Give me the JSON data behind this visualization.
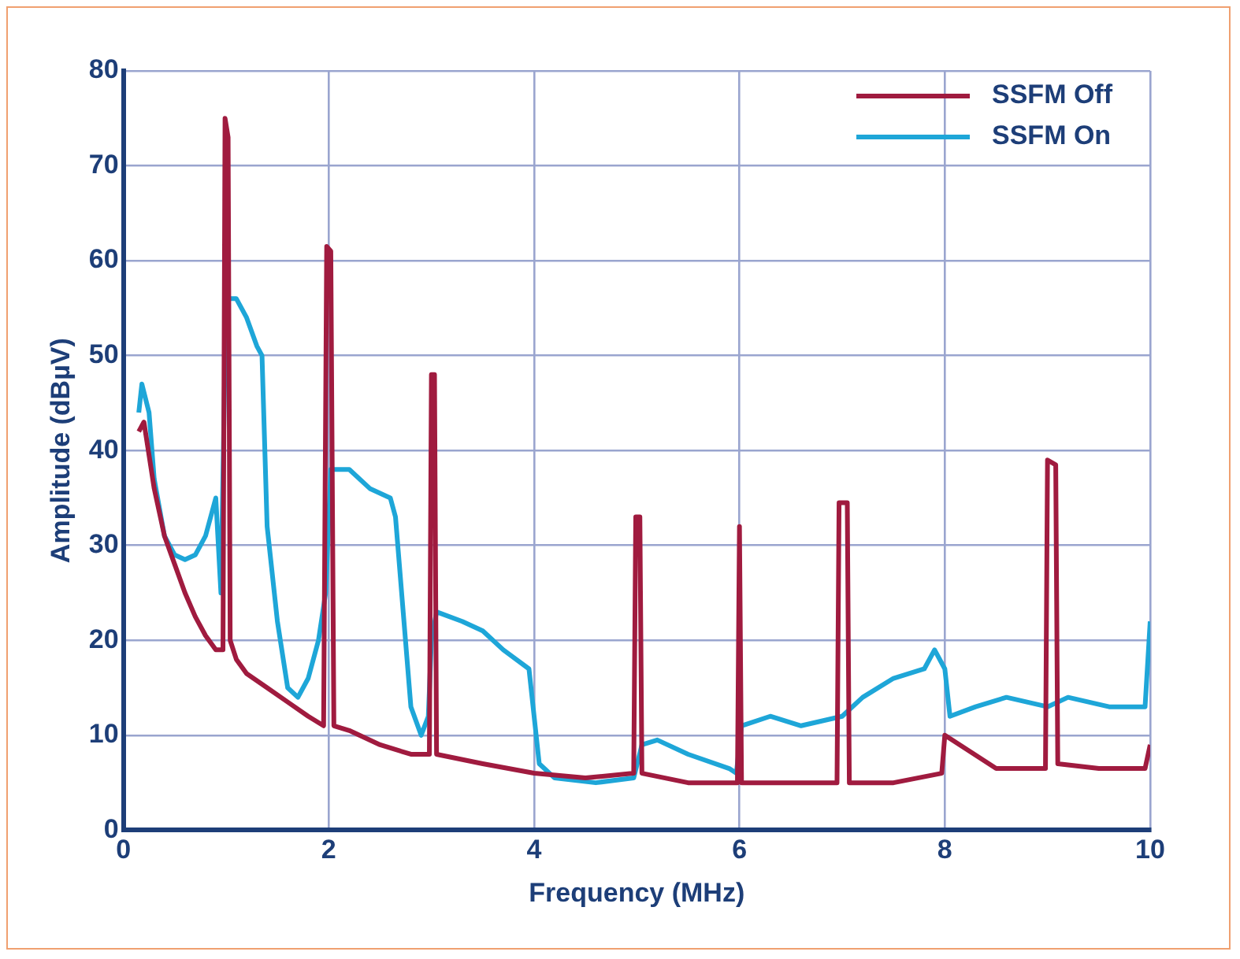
{
  "chart_data": {
    "type": "line",
    "xlabel": "Frequency (MHz)",
    "ylabel": "Amplitude (dBµV)",
    "xlim": [
      0,
      10
    ],
    "xticks": [
      0,
      2,
      4,
      6,
      8,
      10
    ],
    "ylim": [
      0,
      80
    ],
    "yticks": [
      0,
      10,
      20,
      30,
      40,
      50,
      60,
      70,
      80
    ],
    "grid": true,
    "legend": "top right",
    "marker": "none",
    "line_style": "solid",
    "series": [
      {
        "name": "SSFM Off",
        "color": "#a01b3f",
        "x": [
          0.15,
          0.2,
          0.3,
          0.4,
          0.5,
          0.6,
          0.7,
          0.8,
          0.9,
          0.97,
          0.99,
          1.02,
          1.04,
          1.1,
          1.2,
          1.4,
          1.6,
          1.8,
          1.95,
          1.98,
          2.02,
          2.05,
          2.2,
          2.5,
          2.8,
          2.98,
          3.0,
          3.03,
          3.05,
          3.5,
          4.0,
          4.5,
          4.97,
          4.99,
          5.03,
          5.05,
          5.5,
          5.98,
          6.0,
          6.02,
          6.5,
          6.95,
          6.97,
          7.05,
          7.07,
          7.5,
          7.97,
          8.0,
          8.5,
          8.98,
          9.0,
          9.08,
          9.1,
          9.5,
          9.95,
          10
        ],
        "values": [
          42,
          43,
          36,
          31,
          28,
          25,
          22.5,
          20.5,
          19,
          19,
          75,
          73,
          20,
          18,
          16.5,
          15,
          13.5,
          12,
          11,
          61.5,
          61,
          11,
          10.5,
          9,
          8,
          8,
          48,
          48,
          8,
          7,
          6,
          5.5,
          6,
          33,
          33,
          6,
          5,
          5,
          32,
          5,
          5,
          5,
          34.5,
          34.5,
          5,
          5,
          6,
          10,
          6.5,
          6.5,
          39,
          38.5,
          7,
          6.5,
          6.5,
          9
        ]
      },
      {
        "name": "SSFM On",
        "color": "#1ea6d8",
        "x": [
          0.15,
          0.18,
          0.25,
          0.3,
          0.4,
          0.5,
          0.6,
          0.7,
          0.8,
          0.9,
          0.95,
          0.99,
          1.02,
          1.1,
          1.2,
          1.3,
          1.35,
          1.4,
          1.5,
          1.6,
          1.7,
          1.8,
          1.9,
          1.97,
          2.02,
          2.2,
          2.4,
          2.6,
          2.65,
          2.8,
          2.9,
          2.97,
          3.0,
          3.05,
          3.3,
          3.5,
          3.7,
          3.95,
          4.05,
          4.2,
          4.6,
          4.97,
          5.05,
          5.2,
          5.5,
          5.9,
          5.97,
          6.02,
          6.3,
          6.6,
          7.0,
          7.2,
          7.5,
          7.8,
          7.9,
          8.0,
          8.05,
          8.3,
          8.6,
          9.0,
          9.2,
          9.6,
          9.95,
          10
        ],
        "values": [
          44,
          47,
          44,
          37,
          31,
          29,
          28.5,
          29,
          31,
          35,
          25,
          50,
          56,
          56,
          54,
          51,
          50,
          32,
          22,
          15,
          14,
          16,
          20,
          25,
          38,
          38,
          36,
          35,
          33,
          13,
          10,
          12,
          20,
          23,
          22,
          21,
          19,
          17,
          7,
          5.5,
          5,
          5.5,
          9,
          9.5,
          8,
          6.5,
          6,
          11,
          12,
          11,
          12,
          14,
          16,
          17,
          19,
          17,
          12,
          13,
          14,
          13,
          14,
          13,
          13,
          22
        ]
      }
    ]
  }
}
